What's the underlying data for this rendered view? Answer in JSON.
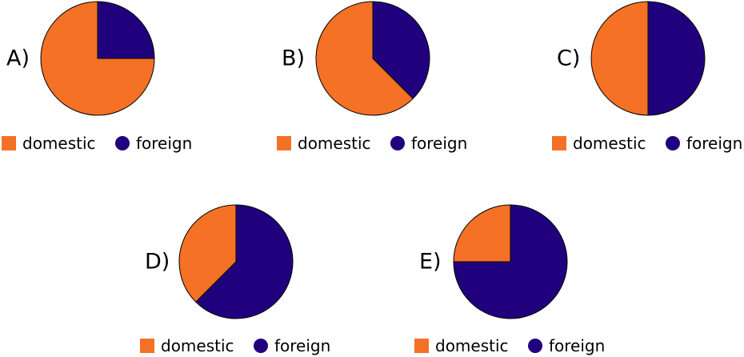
{
  "chart_data": [
    {
      "type": "pie",
      "option_label": "A)",
      "categories": [
        "domestic",
        "foreign"
      ],
      "values": [
        0.75,
        0.25
      ],
      "colors": [
        "#f47125",
        "#21007e"
      ],
      "legend": {
        "placement": "bottom",
        "items": [
          {
            "label": "domestic",
            "marker": "square"
          },
          {
            "label": "foreign",
            "marker": "circle"
          }
        ]
      }
    },
    {
      "type": "pie",
      "option_label": "B)",
      "categories": [
        "domestic",
        "foreign"
      ],
      "values": [
        0.625,
        0.375
      ],
      "colors": [
        "#f47125",
        "#21007e"
      ],
      "legend": {
        "placement": "bottom",
        "items": [
          {
            "label": "domestic",
            "marker": "square"
          },
          {
            "label": "foreign",
            "marker": "circle"
          }
        ]
      }
    },
    {
      "type": "pie",
      "option_label": "C)",
      "categories": [
        "domestic",
        "foreign"
      ],
      "values": [
        0.5,
        0.5
      ],
      "colors": [
        "#f47125",
        "#21007e"
      ],
      "legend": {
        "placement": "bottom",
        "items": [
          {
            "label": "domestic",
            "marker": "square"
          },
          {
            "label": "foreign",
            "marker": "circle"
          }
        ]
      }
    },
    {
      "type": "pie",
      "option_label": "D)",
      "categories": [
        "domestic",
        "foreign"
      ],
      "values": [
        0.375,
        0.625
      ],
      "colors": [
        "#f47125",
        "#21007e"
      ],
      "legend": {
        "placement": "bottom",
        "items": [
          {
            "label": "domestic",
            "marker": "square"
          },
          {
            "label": "foreign",
            "marker": "circle"
          }
        ]
      }
    },
    {
      "type": "pie",
      "option_label": "E)",
      "categories": [
        "domestic",
        "foreign"
      ],
      "values": [
        0.25,
        0.75
      ],
      "colors": [
        "#f47125",
        "#21007e"
      ],
      "legend": {
        "placement": "bottom",
        "items": [
          {
            "label": "domestic",
            "marker": "square"
          },
          {
            "label": "foreign",
            "marker": "circle"
          }
        ]
      }
    }
  ]
}
